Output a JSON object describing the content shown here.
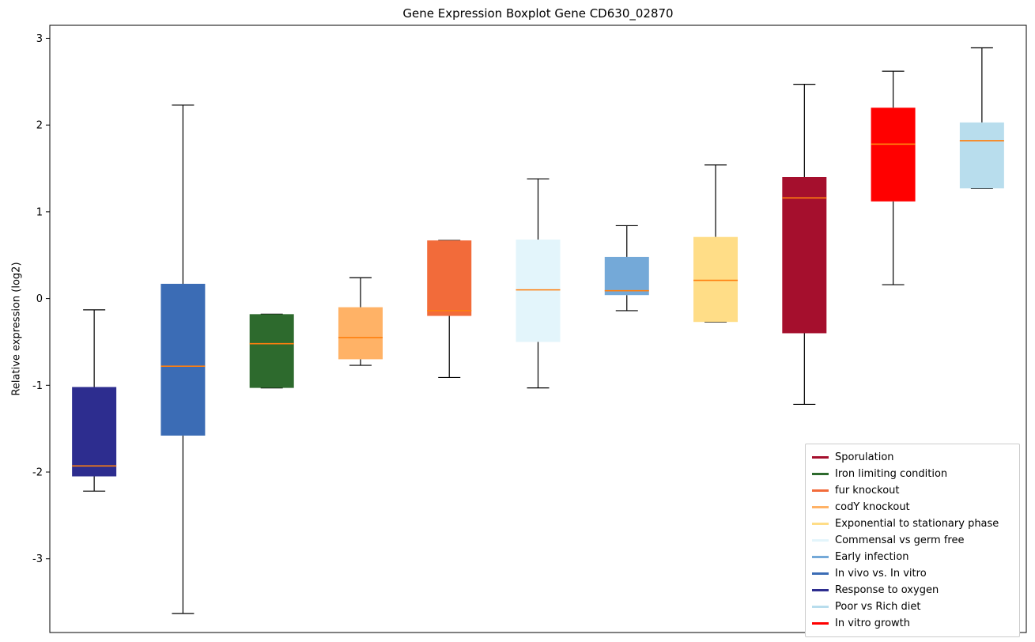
{
  "chart_data": {
    "type": "boxplot",
    "title": "Gene Expression Boxplot Gene CD630_02870",
    "ylabel": "Relative expression (log2)",
    "xlabel": "",
    "ylim": [
      -3.85,
      3.15
    ],
    "yticks": [
      3,
      2,
      1,
      0,
      -1,
      -2,
      -3
    ],
    "median_color": "#ff7f0e",
    "whisker_color": "#000000",
    "boxes": [
      {
        "label": "Response to oxygen",
        "color": "#2d2d8f",
        "whislo": -2.22,
        "q1": -2.05,
        "med": -1.93,
        "q3": -1.02,
        "whishi": -0.13
      },
      {
        "label": "In vivo vs. In vitro",
        "color": "#3b6cb5",
        "whislo": -3.63,
        "q1": -1.58,
        "med": -0.78,
        "q3": 0.17,
        "whishi": 2.23
      },
      {
        "label": "Iron limiting condition",
        "color": "#2d6a2d",
        "whislo": -1.03,
        "q1": -1.03,
        "med": -0.52,
        "q3": -0.18,
        "whishi": -0.18
      },
      {
        "label": "codY knockout",
        "color": "#ffb266",
        "whislo": -0.77,
        "q1": -0.7,
        "med": -0.45,
        "q3": -0.1,
        "whishi": 0.24
      },
      {
        "label": "fur knockout",
        "color": "#f26b3a",
        "whislo": -0.91,
        "q1": -0.2,
        "med": -0.14,
        "q3": 0.67,
        "whishi": 0.67
      },
      {
        "label": "Commensal vs germ free",
        "color": "#e3f5fb",
        "whislo": -1.03,
        "q1": -0.5,
        "med": 0.1,
        "q3": 0.68,
        "whishi": 1.38
      },
      {
        "label": "Early infection",
        "color": "#74a9d8",
        "whislo": -0.14,
        "q1": 0.04,
        "med": 0.09,
        "q3": 0.48,
        "whishi": 0.84
      },
      {
        "label": "Exponential to stationary phase",
        "color": "#ffdd87",
        "whislo": -0.27,
        "q1": -0.27,
        "med": 0.21,
        "q3": 0.71,
        "whishi": 1.54
      },
      {
        "label": "Sporulation",
        "color": "#a50f2d",
        "whislo": -1.22,
        "q1": -0.4,
        "med": 1.16,
        "q3": 1.4,
        "whishi": 2.47
      },
      {
        "label": "In vitro growth",
        "color": "#ff0000",
        "whislo": 0.16,
        "q1": 1.12,
        "med": 1.78,
        "q3": 2.2,
        "whishi": 2.62
      },
      {
        "label": "Poor vs Rich diet",
        "color": "#b8dded",
        "whislo": 1.27,
        "q1": 1.27,
        "med": 1.82,
        "q3": 2.03,
        "whishi": 2.89
      }
    ],
    "legend": {
      "position": "lower right",
      "items": [
        {
          "label": "Sporulation",
          "color": "#a50f2d"
        },
        {
          "label": "Iron limiting condition",
          "color": "#2d6a2d"
        },
        {
          "label": "fur knockout",
          "color": "#f26b3a"
        },
        {
          "label": "codY knockout",
          "color": "#ffb266"
        },
        {
          "label": "Exponential to stationary phase",
          "color": "#ffdd87"
        },
        {
          "label": "Commensal vs germ free",
          "color": "#e3f5fb"
        },
        {
          "label": "Early infection",
          "color": "#74a9d8"
        },
        {
          "label": "In vivo vs. In vitro",
          "color": "#3b6cb5"
        },
        {
          "label": "Response to oxygen",
          "color": "#2d2d8f"
        },
        {
          "label": "Poor vs Rich diet",
          "color": "#b8dded"
        },
        {
          "label": "In vitro growth",
          "color": "#ff0000"
        }
      ]
    }
  }
}
